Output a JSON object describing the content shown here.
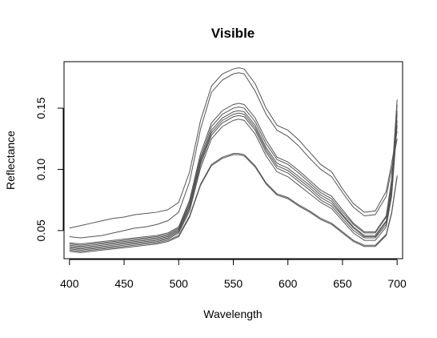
{
  "chart_data": {
    "type": "line",
    "title": "Visible",
    "xlabel": "Wavelength",
    "ylabel": "Reflectance",
    "xlim": [
      395,
      705
    ],
    "ylim": [
      0.027,
      0.188
    ],
    "x_ticks": [
      400,
      450,
      500,
      550,
      600,
      650,
      700
    ],
    "y_ticks": [
      0.05,
      0.1,
      0.15
    ],
    "y_tick_labels": [
      "0.05",
      "0.10",
      "0.15"
    ],
    "grid": false,
    "line_color": "#555555",
    "x": [
      400,
      410,
      420,
      430,
      440,
      450,
      460,
      470,
      480,
      490,
      500,
      510,
      520,
      530,
      540,
      550,
      555,
      560,
      570,
      580,
      590,
      600,
      610,
      620,
      630,
      640,
      650,
      660,
      670,
      680,
      690,
      695,
      700
    ],
    "series": [
      {
        "values": [
          0.052,
          0.054,
          0.056,
          0.058,
          0.06,
          0.061,
          0.063,
          0.064,
          0.065,
          0.067,
          0.073,
          0.098,
          0.14,
          0.168,
          0.178,
          0.182,
          0.183,
          0.182,
          0.17,
          0.15,
          0.136,
          0.132,
          0.124,
          0.114,
          0.104,
          0.098,
          0.084,
          0.072,
          0.065,
          0.066,
          0.082,
          0.105,
          0.131
        ]
      },
      {
        "values": [
          0.045,
          0.044,
          0.045,
          0.046,
          0.048,
          0.05,
          0.052,
          0.053,
          0.055,
          0.058,
          0.065,
          0.09,
          0.133,
          0.163,
          0.173,
          0.178,
          0.179,
          0.178,
          0.164,
          0.145,
          0.132,
          0.127,
          0.119,
          0.109,
          0.1,
          0.094,
          0.081,
          0.069,
          0.062,
          0.063,
          0.078,
          0.1,
          0.125
        ]
      },
      {
        "values": [
          0.04,
          0.039,
          0.04,
          0.041,
          0.042,
          0.043,
          0.044,
          0.045,
          0.046,
          0.048,
          0.053,
          0.075,
          0.113,
          0.138,
          0.148,
          0.153,
          0.154,
          0.153,
          0.142,
          0.124,
          0.11,
          0.106,
          0.099,
          0.091,
          0.083,
          0.078,
          0.067,
          0.056,
          0.049,
          0.049,
          0.062,
          0.092,
          0.157
        ]
      },
      {
        "values": [
          0.039,
          0.038,
          0.039,
          0.04,
          0.041,
          0.042,
          0.043,
          0.044,
          0.045,
          0.047,
          0.052,
          0.073,
          0.11,
          0.135,
          0.145,
          0.15,
          0.151,
          0.15,
          0.139,
          0.121,
          0.108,
          0.104,
          0.097,
          0.089,
          0.081,
          0.076,
          0.065,
          0.055,
          0.048,
          0.048,
          0.061,
          0.09,
          0.153
        ]
      },
      {
        "values": [
          0.038,
          0.037,
          0.038,
          0.039,
          0.04,
          0.041,
          0.042,
          0.043,
          0.044,
          0.046,
          0.051,
          0.071,
          0.108,
          0.132,
          0.142,
          0.147,
          0.148,
          0.147,
          0.136,
          0.118,
          0.105,
          0.101,
          0.094,
          0.087,
          0.079,
          0.074,
          0.063,
          0.053,
          0.046,
          0.046,
          0.058,
          0.086,
          0.148
        ]
      },
      {
        "values": [
          0.037,
          0.036,
          0.037,
          0.038,
          0.039,
          0.04,
          0.041,
          0.042,
          0.043,
          0.045,
          0.05,
          0.07,
          0.106,
          0.13,
          0.14,
          0.145,
          0.146,
          0.145,
          0.134,
          0.116,
          0.103,
          0.099,
          0.092,
          0.085,
          0.077,
          0.072,
          0.062,
          0.052,
          0.045,
          0.045,
          0.057,
          0.084,
          0.145
        ]
      },
      {
        "values": [
          0.036,
          0.035,
          0.036,
          0.037,
          0.038,
          0.039,
          0.04,
          0.041,
          0.042,
          0.044,
          0.049,
          0.068,
          0.104,
          0.128,
          0.138,
          0.143,
          0.144,
          0.143,
          0.132,
          0.114,
          0.101,
          0.097,
          0.09,
          0.083,
          0.075,
          0.07,
          0.06,
          0.05,
          0.044,
          0.044,
          0.055,
          0.081,
          0.14
        ]
      },
      {
        "values": [
          0.035,
          0.034,
          0.035,
          0.036,
          0.037,
          0.038,
          0.039,
          0.04,
          0.041,
          0.043,
          0.048,
          0.066,
          0.101,
          0.125,
          0.135,
          0.14,
          0.141,
          0.14,
          0.129,
          0.111,
          0.098,
          0.094,
          0.087,
          0.08,
          0.073,
          0.068,
          0.058,
          0.048,
          0.042,
          0.042,
          0.053,
          0.078,
          0.136
        ]
      },
      {
        "values": [
          0.034,
          0.033,
          0.034,
          0.035,
          0.036,
          0.037,
          0.038,
          0.039,
          0.04,
          0.042,
          0.046,
          0.062,
          0.088,
          0.104,
          0.11,
          0.113,
          0.113,
          0.112,
          0.103,
          0.089,
          0.08,
          0.077,
          0.071,
          0.066,
          0.06,
          0.056,
          0.049,
          0.042,
          0.038,
          0.038,
          0.047,
          0.065,
          0.095
        ]
      },
      {
        "values": [
          0.033,
          0.032,
          0.033,
          0.034,
          0.035,
          0.036,
          0.037,
          0.038,
          0.039,
          0.041,
          0.045,
          0.061,
          0.087,
          0.103,
          0.109,
          0.112,
          0.112,
          0.111,
          0.102,
          0.088,
          0.079,
          0.076,
          0.07,
          0.065,
          0.059,
          0.055,
          0.048,
          0.041,
          0.037,
          0.037,
          0.046,
          0.064,
          0.094
        ]
      }
    ]
  }
}
